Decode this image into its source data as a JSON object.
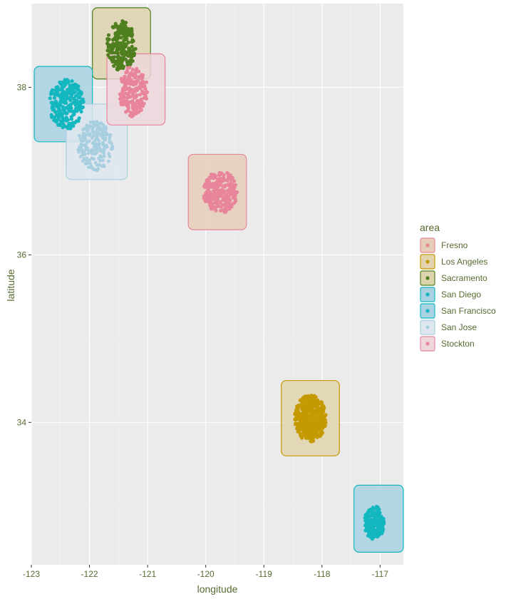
{
  "chart_data": {
    "type": "scatter",
    "xlabel": "longitude",
    "ylabel": "latitude",
    "xlim": [
      -123.0,
      -116.6
    ],
    "ylim": [
      32.3,
      39.0
    ],
    "x_ticks": [
      -123,
      -122,
      -121,
      -120,
      -119,
      -118,
      -117
    ],
    "x_tick_labels": [
      "-123",
      "-122",
      "-121",
      "-120",
      "-119",
      "-118",
      "-117"
    ],
    "y_ticks": [
      34,
      36,
      38
    ],
    "y_tick_labels": [
      "34",
      "36",
      "38"
    ],
    "grid": true,
    "legend_title": "area",
    "legend_position": "right",
    "series": [
      {
        "name": "Fresno",
        "color": "#e8859b",
        "box_fill": "#e6cdb8",
        "point_style": "dot",
        "box": {
          "xmin": -120.3,
          "xmax": -119.3,
          "ymin": 36.3,
          "ymax": 37.2
        },
        "cluster": {
          "cx": -119.75,
          "cy": 36.75,
          "rx": 0.3,
          "ry": 0.25,
          "n": 220,
          "r": 2.6
        }
      },
      {
        "name": "Los Angeles",
        "color": "#c49a00",
        "box_fill": "#e0d3ae",
        "point_style": "dot",
        "box": {
          "xmin": -118.7,
          "xmax": -117.7,
          "ymin": 33.6,
          "ymax": 34.5
        },
        "cluster": {
          "cx": -118.2,
          "cy": 34.05,
          "rx": 0.27,
          "ry": 0.28,
          "n": 420,
          "r": 2.6
        }
      },
      {
        "name": "Sacramento",
        "color": "#4f7f1e",
        "box_fill": "#ddd4ae",
        "point_style": "dot",
        "box": {
          "xmin": -121.95,
          "xmax": -120.95,
          "ymin": 38.1,
          "ymax": 38.95
        },
        "cluster": {
          "cx": -121.45,
          "cy": 38.5,
          "rx": 0.25,
          "ry": 0.3,
          "n": 220,
          "r": 2.6
        }
      },
      {
        "name": "San Diego",
        "color": "#13b7c0",
        "box_fill": "#a9d2e3",
        "point_style": "dot",
        "box": {
          "xmin": -117.45,
          "xmax": -116.6,
          "ymin": 32.45,
          "ymax": 33.25
        },
        "cluster": {
          "cx": -117.1,
          "cy": 32.8,
          "rx": 0.17,
          "ry": 0.2,
          "n": 200,
          "r": 2.6
        }
      },
      {
        "name": "San Francisco",
        "color": "#13b7c0",
        "box_fill": "#a9d2e3",
        "point_style": "dot",
        "box": {
          "xmin": -122.95,
          "xmax": -121.95,
          "ymin": 37.35,
          "ymax": 38.25
        },
        "cluster": {
          "cx": -122.4,
          "cy": 37.8,
          "rx": 0.3,
          "ry": 0.3,
          "n": 240,
          "r": 2.6
        }
      },
      {
        "name": "San Jose",
        "color": "#a8cfe0",
        "box_fill": "#dfe6ee",
        "point_style": "dot",
        "box": {
          "xmin": -122.4,
          "xmax": -121.35,
          "ymin": 36.9,
          "ymax": 37.8
        },
        "cluster": {
          "cx": -121.9,
          "cy": 37.3,
          "rx": 0.3,
          "ry": 0.3,
          "n": 200,
          "r": 2.4
        }
      },
      {
        "name": "Stockton",
        "color": "#e8859b",
        "box_fill": "#ecd7dc",
        "point_style": "dot",
        "box": {
          "xmin": -121.7,
          "xmax": -120.7,
          "ymin": 37.55,
          "ymax": 38.4
        },
        "cluster": {
          "cx": -121.25,
          "cy": 37.95,
          "rx": 0.25,
          "ry": 0.3,
          "n": 200,
          "r": 2.6
        }
      }
    ]
  }
}
